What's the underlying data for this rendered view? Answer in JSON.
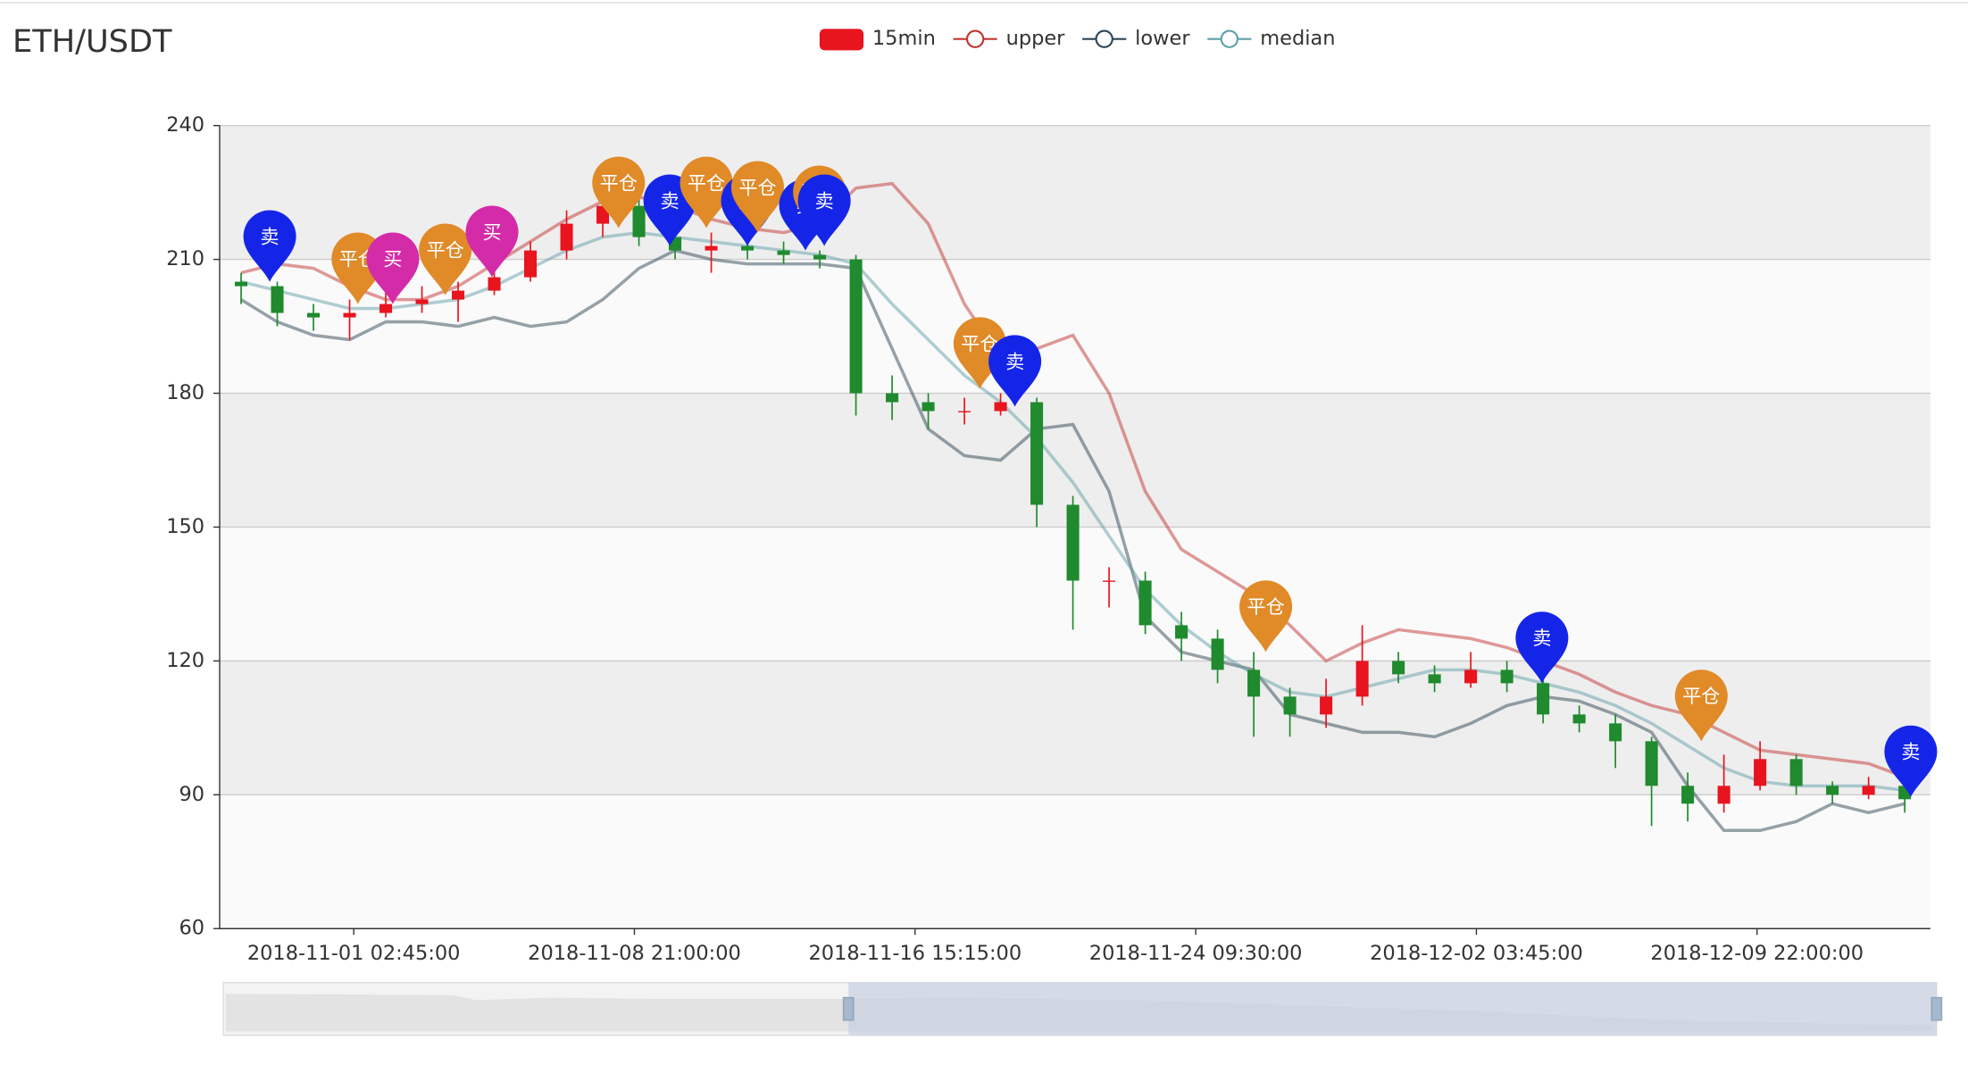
{
  "chart_data": {
    "type": "candlestick",
    "title": "ETH/USDT",
    "x": [
      "2018-10-29 00:00:00",
      "2018-10-30 00:00:00",
      "2018-10-31 00:00:00",
      "2018-11-01 00:00:00",
      "2018-11-02 00:00:00",
      "2018-11-03 00:00:00",
      "2018-11-04 00:00:00",
      "2018-11-05 00:00:00",
      "2018-11-06 00:00:00",
      "2018-11-07 00:00:00",
      "2018-11-08 00:00:00",
      "2018-11-09 00:00:00",
      "2018-11-10 00:00:00",
      "2018-11-11 00:00:00",
      "2018-11-12 00:00:00",
      "2018-11-13 00:00:00",
      "2018-11-14 00:00:00",
      "2018-11-15 00:00:00",
      "2018-11-16 00:00:00",
      "2018-11-17 00:00:00",
      "2018-11-18 00:00:00",
      "2018-11-19 00:00:00",
      "2018-11-20 00:00:00",
      "2018-11-21 00:00:00",
      "2018-11-22 00:00:00",
      "2018-11-23 00:00:00",
      "2018-11-24 00:00:00",
      "2018-11-25 00:00:00",
      "2018-11-26 00:00:00",
      "2018-11-27 00:00:00",
      "2018-11-28 00:00:00",
      "2018-11-29 00:00:00",
      "2018-11-30 00:00:00",
      "2018-12-01 00:00:00",
      "2018-12-02 00:00:00",
      "2018-12-03 00:00:00",
      "2018-12-04 00:00:00",
      "2018-12-05 00:00:00",
      "2018-12-06 00:00:00",
      "2018-12-07 00:00:00",
      "2018-12-08 00:00:00",
      "2018-12-09 00:00:00",
      "2018-12-10 00:00:00",
      "2018-12-11 00:00:00",
      "2018-12-12 00:00:00",
      "2018-12-13 00:00:00",
      "2018-12-14 00:00:00"
    ],
    "xlim": [
      "2018-10-28 09:45:00",
      "2018-12-14 17:00:00"
    ],
    "xticks": [
      "2018-11-01 02:45:00",
      "2018-11-08 21:00:00",
      "2018-11-16 15:15:00",
      "2018-11-24 09:30:00",
      "2018-12-02 03:45:00",
      "2018-12-09 22:00:00"
    ],
    "ylim": [
      60,
      240
    ],
    "yticks": [
      60,
      90,
      120,
      150,
      180,
      210,
      240
    ],
    "grid": true,
    "split_area_colors": [
      "#fafafa",
      "#eeeeee"
    ],
    "series": [
      {
        "name": "15min",
        "type": "candlestick",
        "color": "#e8141e",
        "down_color": "#1f8a2e",
        "values": [
          [
            205,
            204,
            200,
            207
          ],
          [
            204,
            198,
            195,
            205
          ],
          [
            198,
            197,
            194,
            200
          ],
          [
            197,
            198,
            192,
            201
          ],
          [
            198,
            200,
            197,
            203
          ],
          [
            200,
            201,
            198,
            204
          ],
          [
            201,
            203,
            196,
            205
          ],
          [
            203,
            206,
            202,
            209
          ],
          [
            206,
            212,
            205,
            214
          ],
          [
            212,
            218,
            210,
            221
          ],
          [
            218,
            222,
            215,
            226
          ],
          [
            222,
            215,
            213,
            224
          ],
          [
            215,
            212,
            210,
            217
          ],
          [
            212,
            213,
            207,
            216
          ],
          [
            213,
            212,
            210,
            215
          ],
          [
            212,
            211,
            209,
            214
          ],
          [
            211,
            210,
            208,
            212
          ],
          [
            210,
            180,
            175,
            211
          ],
          [
            180,
            178,
            174,
            184
          ],
          [
            178,
            176,
            172,
            180
          ],
          [
            176,
            176,
            173,
            179
          ],
          [
            176,
            178,
            175,
            180
          ],
          [
            178,
            155,
            150,
            179
          ],
          [
            155,
            138,
            127,
            157
          ],
          [
            138,
            138,
            132,
            141
          ],
          [
            138,
            128,
            126,
            140
          ],
          [
            128,
            125,
            120,
            131
          ],
          [
            125,
            118,
            115,
            127
          ],
          [
            118,
            112,
            103,
            122
          ],
          [
            112,
            108,
            103,
            114
          ],
          [
            108,
            112,
            105,
            116
          ],
          [
            112,
            120,
            110,
            128
          ],
          [
            120,
            117,
            115,
            122
          ],
          [
            117,
            115,
            113,
            119
          ],
          [
            115,
            118,
            114,
            122
          ],
          [
            118,
            115,
            113,
            120
          ],
          [
            115,
            108,
            106,
            116
          ],
          [
            108,
            106,
            104,
            110
          ],
          [
            106,
            102,
            96,
            108
          ],
          [
            102,
            92,
            83,
            103
          ],
          [
            92,
            88,
            84,
            95
          ],
          [
            88,
            92,
            86,
            99
          ],
          [
            92,
            98,
            91,
            102
          ],
          [
            98,
            92,
            90,
            99
          ],
          [
            92,
            90,
            88,
            93
          ],
          [
            90,
            92,
            89,
            94
          ],
          [
            92,
            89,
            86,
            94
          ]
        ]
      },
      {
        "name": "upper",
        "type": "line",
        "color": "#c23531",
        "values": [
          207,
          209,
          208,
          204,
          201,
          201,
          204,
          209,
          214,
          219,
          223,
          224,
          222,
          219,
          217,
          216,
          218,
          226,
          227,
          218,
          200,
          188,
          190,
          193,
          180,
          158,
          145,
          140,
          135,
          128,
          120,
          124,
          127,
          126,
          125,
          123,
          120,
          117,
          113,
          110,
          108,
          104,
          100,
          99,
          98,
          97,
          94
        ]
      },
      {
        "name": "lower",
        "type": "line",
        "color": "#2f4554",
        "values": [
          201,
          196,
          193,
          192,
          196,
          196,
          195,
          197,
          195,
          196,
          201,
          208,
          212,
          210,
          209,
          209,
          209,
          208,
          190,
          172,
          166,
          165,
          172,
          173,
          158,
          130,
          122,
          120,
          118,
          108,
          106,
          104,
          104,
          103,
          106,
          110,
          112,
          111,
          108,
          104,
          92,
          82,
          82,
          84,
          88,
          86,
          88
        ]
      },
      {
        "name": "median",
        "type": "line",
        "color": "#61a0a8",
        "values": [
          205,
          203,
          201,
          199,
          199,
          200,
          201,
          204,
          208,
          212,
          215,
          216,
          215,
          214,
          213,
          212,
          211,
          209,
          200,
          192,
          184,
          178,
          170,
          160,
          148,
          136,
          128,
          122,
          117,
          113,
          112,
          114,
          116,
          118,
          118,
          117,
          115,
          113,
          110,
          106,
          101,
          96,
          93,
          92,
          92,
          92,
          91
        ]
      }
    ],
    "annotations": [
      {
        "label": "卖",
        "x": "2018-10-29 19:00:00",
        "y": 205,
        "color": "#1525e8"
      },
      {
        "label": "平仓",
        "x": "2018-11-01 05:30:00",
        "y": 200,
        "color": "#e08a28"
      },
      {
        "label": "买",
        "x": "2018-11-02 04:40:00",
        "y": 200,
        "color": "#d42ba8"
      },
      {
        "label": "平仓",
        "x": "2018-11-03 15:30:00",
        "y": 202,
        "color": "#e08a28"
      },
      {
        "label": "买",
        "x": "2018-11-04 22:30:00",
        "y": 206,
        "color": "#d42ba8"
      },
      {
        "label": "平仓",
        "x": "2018-11-08 10:30:00",
        "y": 217,
        "color": "#e08a28"
      },
      {
        "label": "卖",
        "x": "2018-11-09 20:30:00",
        "y": 213,
        "color": "#1525e8"
      },
      {
        "label": "平仓",
        "x": "2018-11-10 20:45:00",
        "y": 217,
        "color": "#e08a28"
      },
      {
        "label": "卖",
        "x": "2018-11-12 00:00:00",
        "y": 213,
        "color": "#1525e8"
      },
      {
        "label": "平仓",
        "x": "2018-11-12 06:45:00",
        "y": 216,
        "color": "#e08a28"
      },
      {
        "label": "卖",
        "x": "2018-11-13 14:30:00",
        "y": 212,
        "color": "#1525e8"
      },
      {
        "label": "平仓",
        "x": "2018-11-13 23:45:00",
        "y": 215,
        "color": "#e08a28"
      },
      {
        "label": "卖",
        "x": "2018-11-14 03:00:00",
        "y": 213,
        "color": "#1525e8"
      },
      {
        "label": "平仓",
        "x": "2018-11-18 10:15:00",
        "y": 181,
        "color": "#e08a28"
      },
      {
        "label": "卖",
        "x": "2018-11-19 09:30:00",
        "y": 177,
        "color": "#1525e8"
      },
      {
        "label": "平仓",
        "x": "2018-11-26 08:00:00",
        "y": 122,
        "color": "#e08a28"
      },
      {
        "label": "卖",
        "x": "2018-12-03 23:15:00",
        "y": 115,
        "color": "#1525e8"
      },
      {
        "label": "平仓",
        "x": "2018-12-08 09:00:00",
        "y": 102,
        "color": "#e08a28"
      },
      {
        "label": "卖",
        "x": "2018-12-14 04:00:00",
        "y": 89.5,
        "color": "#1525e8"
      }
    ]
  }
}
